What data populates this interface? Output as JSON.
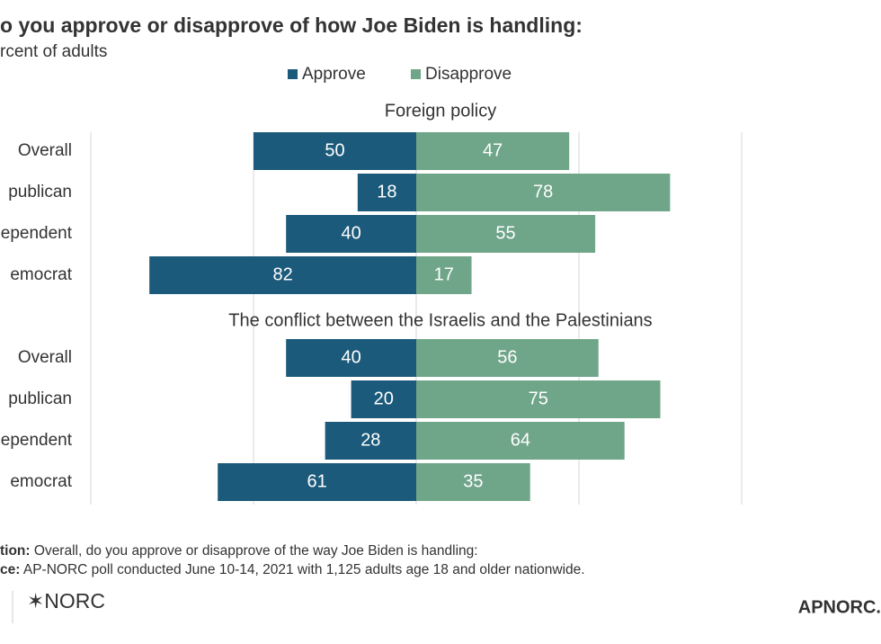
{
  "chart_data": {
    "type": "diverging-bar",
    "title": "o you approve or disapprove of how Joe Biden is handling:",
    "subtitle": "rcent of adults",
    "legend": [
      {
        "name": "Approve",
        "color": "#1b5a7a"
      },
      {
        "name": "Disapprove",
        "color": "#6fa588"
      }
    ],
    "xlim": [
      -100,
      100
    ],
    "xticks": [
      -100,
      -50,
      0,
      50,
      100
    ],
    "grid": true,
    "panels": [
      {
        "title": "Foreign policy",
        "categories": [
          "Overall",
          "publican",
          "ependent",
          "emocrat"
        ],
        "series": [
          {
            "values": [
              50,
              18,
              40,
              82
            ]
          },
          {
            "values": [
              47,
              78,
              55,
              17
            ]
          }
        ]
      },
      {
        "title": "The conflict between the Israelis and the Palestinians",
        "categories": [
          "Overall",
          "publican",
          "ependent",
          "emocrat"
        ],
        "series": [
          {
            "values": [
              40,
              20,
              28,
              61
            ]
          },
          {
            "values": [
              56,
              75,
              64,
              35
            ]
          }
        ]
      }
    ],
    "notes": [
      {
        "label": "tion:",
        "text": " Overall, do you approve or disapprove of the way Joe Biden is handling:"
      },
      {
        "label": "ce:",
        "text": " AP-NORC poll conducted June 10-14, 2021 with 1,125 adults age 18 and older nationwide."
      }
    ],
    "logo": "✶NORC",
    "brand": "APNORC."
  }
}
